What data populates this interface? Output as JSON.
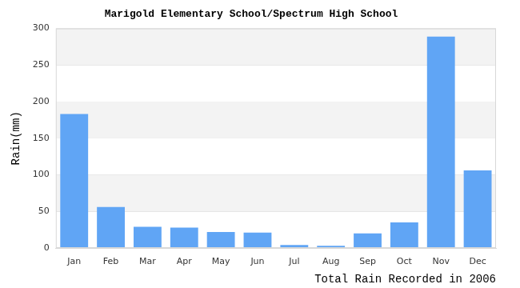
{
  "chart_data": {
    "type": "bar",
    "title": "Marigold Elementary School/Spectrum High School",
    "y_label": "Rain(mm)",
    "x_label": "Total Rain Recorded in 2006",
    "categories": [
      "Jan",
      "Feb",
      "Mar",
      "Apr",
      "May",
      "Jun",
      "Jul",
      "Aug",
      "Sep",
      "Oct",
      "Nov",
      "Dec"
    ],
    "values": [
      183,
      56,
      29,
      28,
      22,
      21,
      4,
      3,
      20,
      35,
      289,
      106
    ],
    "color": "#60a5f5",
    "ylim": [
      0,
      300
    ],
    "yticks": [
      0,
      50,
      100,
      150,
      200,
      250,
      300
    ],
    "grid": true
  }
}
